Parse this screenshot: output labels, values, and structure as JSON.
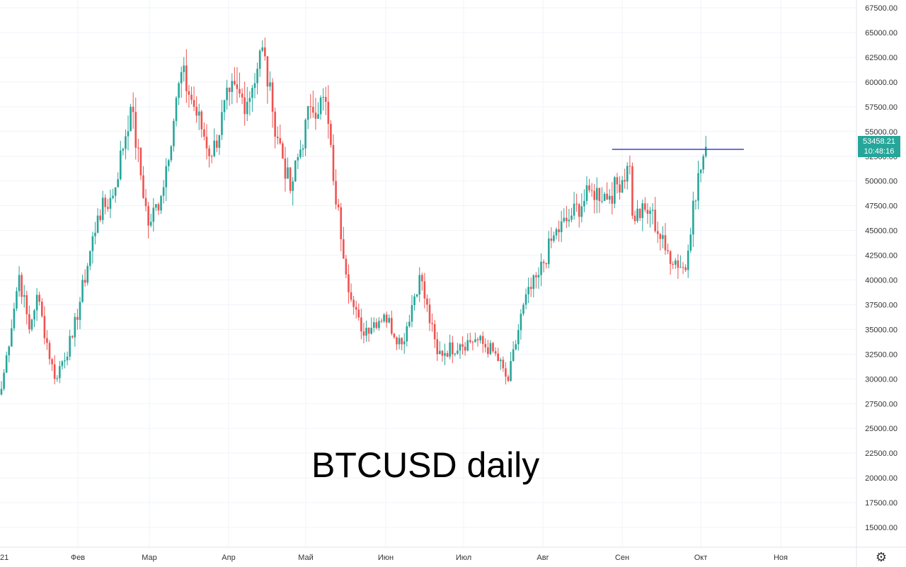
{
  "chart_data": {
    "type": "candlestick",
    "title": "",
    "annotation": "BTCUSD daily",
    "ylim": [
      12500,
      69000
    ],
    "y_ticks": [
      "67500.00",
      "65000.00",
      "62500.00",
      "60000.00",
      "57500.00",
      "55000.00",
      "52500.00",
      "50000.00",
      "47500.00",
      "45000.00",
      "42500.00",
      "40000.00",
      "37500.00",
      "35000.00",
      "32500.00",
      "30000.00",
      "27500.00",
      "25000.00",
      "22500.00",
      "20000.00",
      "17500.00",
      "15000.00"
    ],
    "x_ticks": [
      "21",
      "Фев",
      "Мар",
      "Апр",
      "Май",
      "Июн",
      "Июл",
      "Авг",
      "Сен",
      "Окт",
      "Ноя"
    ],
    "grid": true,
    "colors": {
      "up": "#26a69a",
      "down": "#ef5350",
      "level": "#3f3fd6",
      "grid": "#f0f3fa"
    },
    "level_line": 53200,
    "last_price": {
      "price": "53458.21",
      "countdown": "10:48:16"
    },
    "key_points": [
      {
        "x": "01-01",
        "close": 29000
      },
      {
        "x": "01-08",
        "close": 40500
      },
      {
        "x": "01-12",
        "close": 35000
      },
      {
        "x": "01-15",
        "close": 38500
      },
      {
        "x": "01-22",
        "close": 30000
      },
      {
        "x": "01-29",
        "close": 34200
      },
      {
        "x": "02-08",
        "close": 46500
      },
      {
        "x": "02-14",
        "close": 48500
      },
      {
        "x": "02-21",
        "close": 57500
      },
      {
        "x": "02-28",
        "close": 45500
      },
      {
        "x": "03-05",
        "close": 48500
      },
      {
        "x": "03-13",
        "close": 61000
      },
      {
        "x": "03-18",
        "close": 57500
      },
      {
        "x": "03-25",
        "close": 52500
      },
      {
        "x": "04-01",
        "close": 59000
      },
      {
        "x": "04-08",
        "close": 58000
      },
      {
        "x": "04-14",
        "close": 63500
      },
      {
        "x": "04-18",
        "close": 57000
      },
      {
        "x": "04-25",
        "close": 49000
      },
      {
        "x": "05-03",
        "close": 57500
      },
      {
        "x": "05-09",
        "close": 58000
      },
      {
        "x": "05-12",
        "close": 50000
      },
      {
        "x": "05-19",
        "close": 38000
      },
      {
        "x": "05-23",
        "close": 34800
      },
      {
        "x": "06-01",
        "close": 36500
      },
      {
        "x": "06-08",
        "close": 33500
      },
      {
        "x": "06-15",
        "close": 40500
      },
      {
        "x": "06-22",
        "close": 32500
      },
      {
        "x": "07-01",
        "close": 33500
      },
      {
        "x": "07-07",
        "close": 34000
      },
      {
        "x": "07-14",
        "close": 32800
      },
      {
        "x": "07-20",
        "close": 29800
      },
      {
        "x": "07-26",
        "close": 37500
      },
      {
        "x": "08-01",
        "close": 40500
      },
      {
        "x": "08-07",
        "close": 44500
      },
      {
        "x": "08-14",
        "close": 46500
      },
      {
        "x": "08-22",
        "close": 49000
      },
      {
        "x": "08-29",
        "close": 48500
      },
      {
        "x": "09-06",
        "close": 51500
      },
      {
        "x": "09-07",
        "close": 46500
      },
      {
        "x": "09-14",
        "close": 47000
      },
      {
        "x": "09-20",
        "close": 43000
      },
      {
        "x": "09-28",
        "close": 41000
      },
      {
        "x": "10-01",
        "close": 48000
      },
      {
        "x": "10-06",
        "close": 53458
      }
    ]
  }
}
